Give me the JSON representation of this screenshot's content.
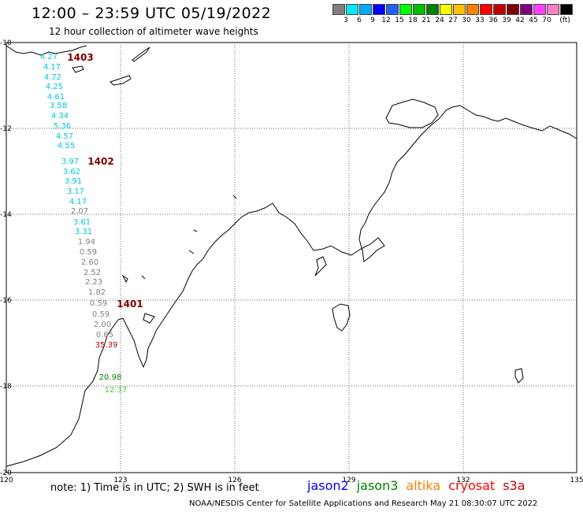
{
  "header": {
    "title": "12:00 – 23:59 UTC 05/19/2022",
    "subtitle": "12 hour collection of altimeter wave heights"
  },
  "legend": {
    "colors": [
      "#808080",
      "#00e8ff",
      "#00a8ff",
      "#0000ff",
      "#2060ff",
      "#00ff00",
      "#00c000",
      "#008000",
      "#ffff00",
      "#ffc000",
      "#ff8000",
      "#ff0000",
      "#c00000",
      "#800000",
      "#800080",
      "#ff40ff",
      "#ff80c0",
      "#000000"
    ],
    "labels": [
      "3",
      "6",
      "9",
      "12",
      "15",
      "18",
      "21",
      "24",
      "27",
      "30",
      "33",
      "36",
      "39",
      "42",
      "45",
      "70",
      "(ft)"
    ]
  },
  "axes": {
    "x_ticks": [
      "120",
      "123",
      "126",
      "129",
      "132",
      "135"
    ],
    "y_ticks": [
      "-10",
      "-12",
      "-14",
      "-16",
      "-18",
      "-20"
    ]
  },
  "passes": [
    {
      "label": "1403",
      "color": "#800000"
    },
    {
      "label": "1402",
      "color": "#800000"
    },
    {
      "label": "1401",
      "color": "#800000"
    }
  ],
  "readings": [
    {
      "v": "4.27",
      "c": "#00c8d8"
    },
    {
      "v": "4.17",
      "c": "#00c8d8"
    },
    {
      "v": "4.72",
      "c": "#00c8d8"
    },
    {
      "v": "4.25",
      "c": "#00c8d8"
    },
    {
      "v": "4.61",
      "c": "#00c8d8"
    },
    {
      "v": "3.58",
      "c": "#00c8d8"
    },
    {
      "v": "4.34",
      "c": "#00c8d8"
    },
    {
      "v": "5.36",
      "c": "#00c8d8"
    },
    {
      "v": "4.57",
      "c": "#00c8d8"
    },
    {
      "v": "4.55",
      "c": "#00c8d8"
    },
    {
      "v": "3.97",
      "c": "#00c8d8"
    },
    {
      "v": "3.62",
      "c": "#00c8d8"
    },
    {
      "v": "3.91",
      "c": "#00c8d8"
    },
    {
      "v": "3.17",
      "c": "#00c8d8"
    },
    {
      "v": "4.17",
      "c": "#00c8d8"
    },
    {
      "v": "2.07",
      "c": "#808080"
    },
    {
      "v": "3.61",
      "c": "#00c8d8"
    },
    {
      "v": "3.31",
      "c": "#00c8d8"
    },
    {
      "v": "1.94",
      "c": "#808080"
    },
    {
      "v": "0.59",
      "c": "#808080"
    },
    {
      "v": "2.60",
      "c": "#808080"
    },
    {
      "v": "2.52",
      "c": "#808080"
    },
    {
      "v": "2.23",
      "c": "#808080"
    },
    {
      "v": "1.82",
      "c": "#808080"
    },
    {
      "v": "0.59",
      "c": "#808080"
    },
    {
      "v": "0.59",
      "c": "#808080"
    },
    {
      "v": "2.00",
      "c": "#808080"
    },
    {
      "v": "0.65",
      "c": "#808080"
    },
    {
      "v": "35.39",
      "c": "#c00000"
    },
    {
      "v": "20.98",
      "c": "#008000"
    },
    {
      "v": "12.37",
      "c": "#40d040"
    }
  ],
  "note": "note: 1) Time is in UTC; 2) SWH is in feet",
  "missions": [
    {
      "name": "jason2",
      "color": "#0000ff"
    },
    {
      "name": "jason3",
      "color": "#008000"
    },
    {
      "name": "altika",
      "color": "#ff8000"
    },
    {
      "name": "cryosat",
      "color": "#ff0000"
    },
    {
      "name": "s3a",
      "color": "#c00000"
    }
  ],
  "footer": "NOAA/NESDIS Center for Satellite Applications and Research    May 21 08:30:07 UTC 2022"
}
